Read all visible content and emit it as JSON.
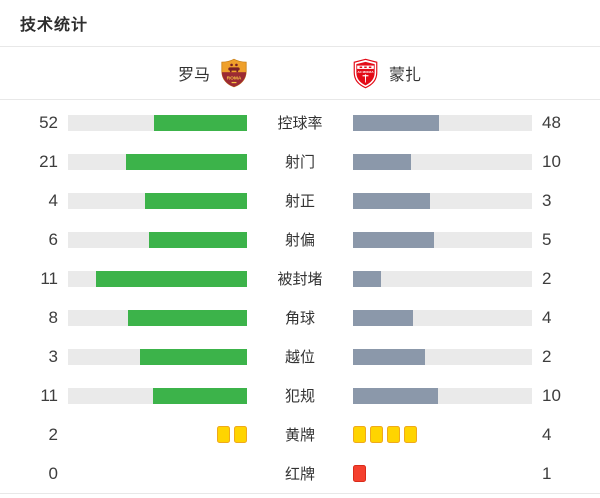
{
  "title": "技术统计",
  "teams": {
    "home": {
      "name": "罗马",
      "crest": "as-roma-crest"
    },
    "away": {
      "name": "蒙扎",
      "crest": "ac-monza-crest"
    }
  },
  "rows": [
    {
      "label": "控球率",
      "home": 52,
      "away": 48,
      "display": "bar"
    },
    {
      "label": "射门",
      "home": 21,
      "away": 10,
      "display": "bar"
    },
    {
      "label": "射正",
      "home": 4,
      "away": 3,
      "display": "bar"
    },
    {
      "label": "射偏",
      "home": 6,
      "away": 5,
      "display": "bar"
    },
    {
      "label": "被封堵",
      "home": 11,
      "away": 2,
      "display": "bar"
    },
    {
      "label": "角球",
      "home": 8,
      "away": 4,
      "display": "bar"
    },
    {
      "label": "越位",
      "home": 3,
      "away": 2,
      "display": "bar"
    },
    {
      "label": "犯规",
      "home": 11,
      "away": 10,
      "display": "bar"
    },
    {
      "label": "黄牌",
      "home": 2,
      "away": 4,
      "display": "yellow"
    },
    {
      "label": "红牌",
      "home": 0,
      "away": 1,
      "display": "red"
    }
  ],
  "colors": {
    "home_bar": "#3cb34a",
    "away_bar": "#8b98aa",
    "track": "#eaeaea",
    "yellow_card": "#ffd400",
    "yellow_card_border": "#efa91c",
    "red_card": "#f5402e",
    "red_card_border": "#d92b1a",
    "divider": "#e8e8e8",
    "roma_gold": "#efa02b",
    "roma_maroon": "#9c2b33",
    "monza_red": "#e30b17"
  },
  "chart_data": {
    "type": "bar",
    "subtype": "paired-horizontal-comparison",
    "title": "技术统计",
    "categories": [
      "控球率",
      "射门",
      "射正",
      "射偏",
      "被封堵",
      "角球",
      "越位",
      "犯规",
      "黄牌",
      "红牌"
    ],
    "series": [
      {
        "name": "罗马",
        "values": [
          52,
          21,
          4,
          6,
          11,
          8,
          3,
          11,
          2,
          0
        ]
      },
      {
        "name": "蒙扎",
        "values": [
          48,
          10,
          3,
          5,
          2,
          4,
          2,
          10,
          4,
          1
        ]
      }
    ],
    "notes": "每行左右条形按 值/(左值+右值) 比例填充；黄牌/红牌行以卡片图标显示数量",
    "legend_position": "top",
    "grid": false
  }
}
